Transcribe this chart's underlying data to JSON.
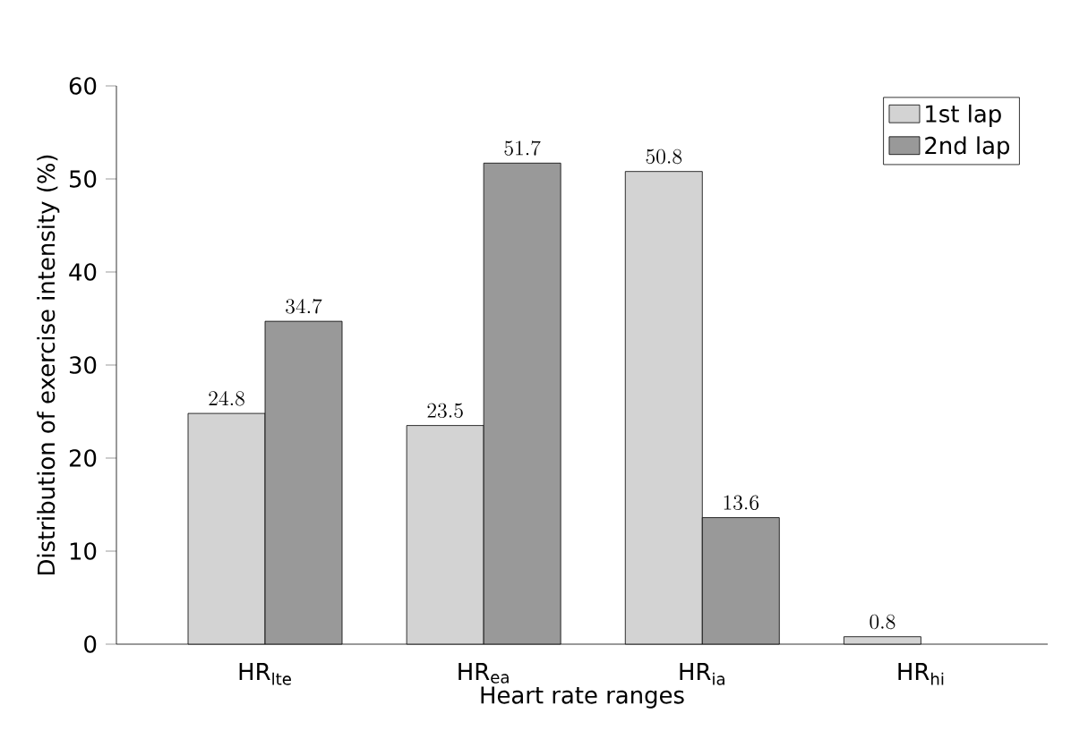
{
  "chart_data": {
    "type": "bar",
    "xlabel": "Heart rate ranges",
    "ylabel": "Distribution of exercise intensity (%)",
    "categories": [
      "HR$_{lte}$",
      "HR$_{ea}$",
      "HR$_{ia}$",
      "HR$_{hi}$"
    ],
    "series": [
      {
        "name": "1st lap",
        "color": "#d3d3d3",
        "values": [
          24.8,
          23.5,
          50.8,
          0.8
        ]
      },
      {
        "name": "2nd lap",
        "color": "#999999",
        "values": [
          34.7,
          51.7,
          13.6,
          null
        ]
      }
    ],
    "ylim": [
      0,
      60
    ],
    "yticks": [
      0,
      10,
      20,
      30,
      40,
      50,
      60
    ],
    "data_labels": true,
    "legend": "top right",
    "grid": false
  }
}
